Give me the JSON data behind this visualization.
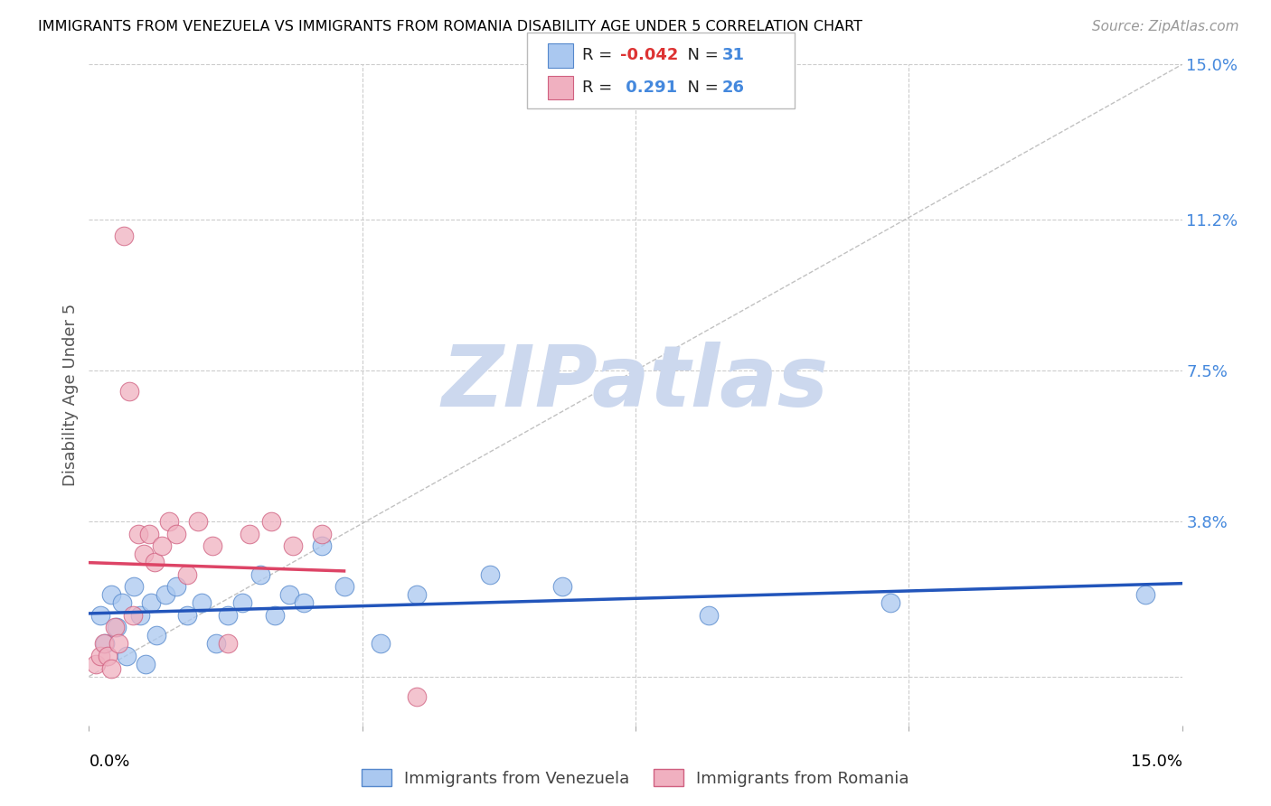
{
  "title": "IMMIGRANTS FROM VENEZUELA VS IMMIGRANTS FROM ROMANIA DISABILITY AGE UNDER 5 CORRELATION CHART",
  "source": "Source: ZipAtlas.com",
  "ylabel": "Disability Age Under 5",
  "y_tick_labels": [
    "15.0%",
    "11.2%",
    "7.5%",
    "3.8%"
  ],
  "y_tick_values": [
    15.0,
    11.2,
    7.5,
    3.8
  ],
  "xlim": [
    0.0,
    15.0
  ],
  "ylim": [
    -1.2,
    15.0
  ],
  "legend_label1": "Immigrants from Venezuela",
  "legend_label2": "Immigrants from Romania",
  "r1": "-0.042",
  "n1": "31",
  "r2": "0.291",
  "n2": "26",
  "color_blue_fill": "#aac8f0",
  "color_blue_edge": "#5588cc",
  "color_pink_fill": "#f0b0c0",
  "color_pink_edge": "#d06080",
  "color_blue_line": "#2255bb",
  "color_pink_line": "#dd4466",
  "color_diag_line": "#bbbbbb",
  "color_grid": "#cccccc",
  "color_ytick": "#4488dd",
  "watermark": "ZIPatlas",
  "watermark_color": "#ccd8ee",
  "venezuela_x": [
    0.15,
    0.22,
    0.3,
    0.38,
    0.45,
    0.52,
    0.62,
    0.7,
    0.78,
    0.85,
    0.92,
    1.05,
    1.2,
    1.35,
    1.55,
    1.75,
    1.9,
    2.1,
    2.35,
    2.55,
    2.75,
    2.95,
    3.2,
    3.5,
    4.0,
    4.5,
    5.5,
    6.5,
    8.5,
    11.0,
    14.5
  ],
  "venezuela_y": [
    1.5,
    0.8,
    2.0,
    1.2,
    1.8,
    0.5,
    2.2,
    1.5,
    0.3,
    1.8,
    1.0,
    2.0,
    2.2,
    1.5,
    1.8,
    0.8,
    1.5,
    1.8,
    2.5,
    1.5,
    2.0,
    1.8,
    3.2,
    2.2,
    0.8,
    2.0,
    2.5,
    2.2,
    1.5,
    1.8,
    2.0
  ],
  "romania_x": [
    0.1,
    0.15,
    0.2,
    0.25,
    0.3,
    0.35,
    0.4,
    0.48,
    0.55,
    0.6,
    0.68,
    0.75,
    0.82,
    0.9,
    1.0,
    1.1,
    1.2,
    1.35,
    1.5,
    1.7,
    1.9,
    2.2,
    2.5,
    2.8,
    3.2,
    4.5
  ],
  "romania_y": [
    0.3,
    0.5,
    0.8,
    0.5,
    0.2,
    1.2,
    0.8,
    10.8,
    7.0,
    1.5,
    3.5,
    3.0,
    3.5,
    2.8,
    3.2,
    3.8,
    3.5,
    2.5,
    3.8,
    3.2,
    0.8,
    3.5,
    3.8,
    3.2,
    3.5,
    -0.5
  ]
}
